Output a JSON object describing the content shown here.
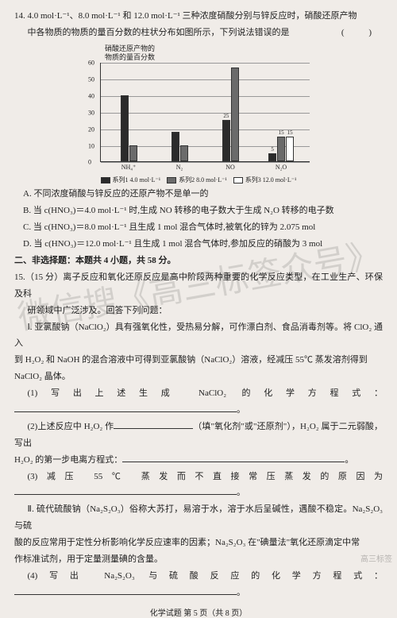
{
  "q14": {
    "stem1": "14. 4.0 mol·L⁻¹、8.0 mol·L⁻¹ 和 12.0 mol·L⁻¹ 三种浓度硝酸分别与锌反应时，硝酸还原产物",
    "stem2": "中各物质的物质的量百分数的柱状分布如图所示，下列说法错误的是",
    "paren": "(  )",
    "chart": {
      "title1": "硝酸还原产物的",
      "title2": "物质的量百分数",
      "ymax": 60,
      "ystep": 10,
      "yticks": [
        0,
        10,
        20,
        30,
        40,
        50,
        60
      ],
      "categories": [
        "NH₄⁺",
        "N₂",
        "NO",
        "N₂O"
      ],
      "series": [
        {
          "label": "系列1  4.0 mol·L⁻¹",
          "color": "#2b2b2b",
          "values": [
            40,
            18,
            25,
            5
          ]
        },
        {
          "label": "系列2  8.0 mol·L⁻¹",
          "color": "#6b6b6b",
          "values": [
            10,
            10,
            57,
            15
          ]
        },
        {
          "label": "系列3  12.0 mol·L⁻¹",
          "color": "#ffffff",
          "values": [
            0,
            0,
            0,
            15
          ]
        }
      ],
      "show_values": {
        "series": 0,
        "vals": {
          "2": 25,
          "3": 5
        }
      },
      "show_values2": {
        "series": 1,
        "vals": {
          "3": 15
        }
      },
      "show_values3": {
        "series": 2,
        "vals": {
          "3": 15
        }
      }
    },
    "A": "A. 不同浓度硝酸与锌反应的还原产物不是单一的",
    "B": "B. 当 c(HNO₃)＝4.0 mol·L⁻¹ 时,生成 NO 转移的电子数大于生成 N₂O 转移的电子数",
    "C": "C. 当 c(HNO₃)＝8.0 mol·L⁻¹ 且生成 1 mol 混合气体时,被氧化的锌为 2.075 mol",
    "D": "D. 当 c(HNO₃)＝12.0 mol·L⁻¹ 且生成 1 mol 混合气体时,参加反应的硝酸为 3 mol"
  },
  "sec2": "二、非选择题：本题共 4 小题，共 58 分。",
  "q15": {
    "stem1": "15.（15 分）离子反应和氧化还原反应是高中阶段两种重要的化学反应类型，在工业生产、环保及科",
    "stem2": "研领域中广泛涉及。回答下列问题：",
    "I1": "Ⅰ. 亚氯酸钠（NaClO₂）具有强氧化性，受热易分解，可作漂白剂、食品消毒剂等。将 ClO₂ 通入",
    "I2": "到 H₂O₂ 和 NaOH 的混合溶液中可得到亚氯酸钠（NaClO₂）溶液，经减压 55℃ 蒸发溶剂得到",
    "I3": "NaClO₂ 晶体。",
    "p1": "(1)写出上述生成 NaClO₂ 的化学方程式：",
    "p2a": "(2)上述反应中 H₂O₂ 作",
    "p2b": "（填\"氧化剂\"或\"还原剂\"），H₂O₂ 属于二元弱酸，写出",
    "p2c": "H₂O₂ 的第一步电离方程式：",
    "p3": "(3)减压 55℃ 蒸发而不直接常压蒸发的原因为",
    "II1": "Ⅱ. 硫代硫酸钠（Na₂S₂O₃）俗称大苏打，易溶于水，溶于水后呈碱性，遇酸不稳定。Na₂S₂O₃ 与硫",
    "II2": "酸的反应常用于定性分析影响化学反应速率的因素；Na₂S₂O₃ 在\"碘量法\"氧化还原滴定中常",
    "II3": "作标准试剂，用于定量测量碘的含量。",
    "p4": "(4)写出 Na₂S₂O₃ 与硫酸反应的化学方程式："
  },
  "footer": "化学试题  第 5 页（共 8 页）",
  "watermark": "微信搜《高三标签众号》",
  "wm_corner": "高三标签"
}
